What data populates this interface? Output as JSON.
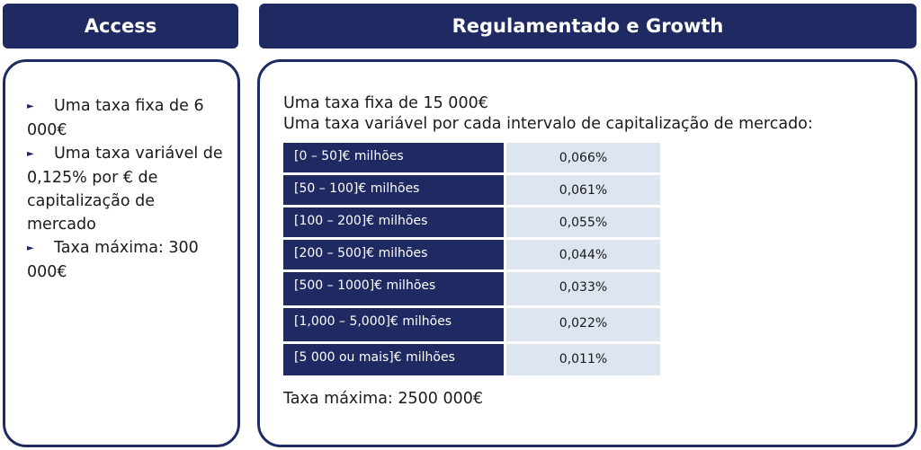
{
  "headers": {
    "left": "Access",
    "right": "Regulamentado e Growth"
  },
  "access": {
    "bullets": [
      "Uma taxa fixa de 6 000€",
      "Uma taxa variável de 0,125% por € de capitalização de mercado",
      "Taxa máxima: 300 000€"
    ]
  },
  "regulated": {
    "fixed_fee": "Uma taxa fixa de 15 000€",
    "variable_intro": "Uma taxa variável por cada intervalo de capitalização de mercado:",
    "table": [
      {
        "range": "[0 – 50]€ milhões",
        "rate": "0,066%"
      },
      {
        "range": "[50 – 100]€ milhões",
        "rate": "0,061%"
      },
      {
        "range": "[100 – 200]€ milhões",
        "rate": "0,055%"
      },
      {
        "range": "[200 – 500]€ milhões",
        "rate": "0,044%"
      },
      {
        "range": "[500 – 1000]€ milhões",
        "rate": "0,033%"
      },
      {
        "range": "[1,000 – 5,000]€ milhões",
        "rate": "0,022%"
      },
      {
        "range": "[5 000 ou mais]€ milhões",
        "rate": "0,011%"
      }
    ],
    "max_fee": "Taxa máxima: 2500 000€"
  },
  "colors": {
    "navy": "#1f2a63",
    "light_cell": "#dde5f1"
  }
}
